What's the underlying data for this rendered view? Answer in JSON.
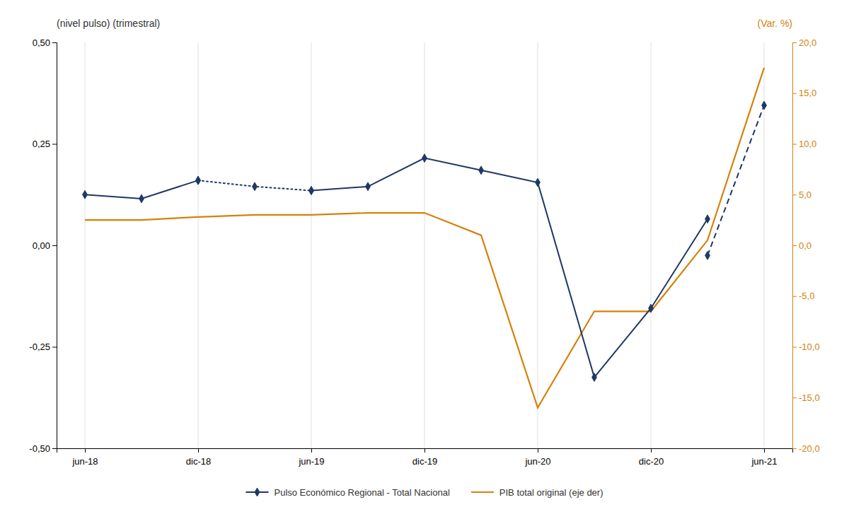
{
  "chart_data": {
    "type": "line",
    "y_label": "(nivel pulso) (trimestral)",
    "y2_label": "(Var. %)",
    "categories": [
      "jun-18",
      null,
      "dic-18",
      null,
      "jun-19",
      null,
      "dic-19",
      null,
      "jun-20",
      null,
      "dic-20",
      null,
      "jun-21"
    ],
    "series": [
      {
        "name": "Pulso Económico Regional - Total Nacional",
        "color": "#1f3864",
        "marker": "diamond",
        "line_style": "solid",
        "values": [
          0.125,
          0.115,
          0.16,
          null,
          0.135,
          0.145,
          0.215,
          0.185,
          0.155,
          -0.325,
          -0.155,
          0.065,
          null
        ]
      },
      {
        "color": "#1f3864",
        "marker": "diamond",
        "line_style": "dotted",
        "values": [
          null,
          null,
          0.16,
          0.145,
          0.135,
          null,
          null,
          null,
          null,
          null,
          null,
          null,
          null
        ]
      },
      {
        "color": "#1f3864",
        "marker": "diamond",
        "line_style": "dashed",
        "values": [
          null,
          null,
          null,
          null,
          null,
          null,
          null,
          null,
          null,
          null,
          null,
          -0.025,
          0.345
        ]
      },
      {
        "name": "PIB total original (eje der)",
        "color": "#d4820a",
        "line_style": "solid",
        "axis": "y2",
        "values": [
          2.5,
          2.5,
          2.8,
          3.0,
          3.0,
          3.2,
          3.2,
          1.0,
          -16.0,
          -6.5,
          -6.5,
          0.5,
          17.5
        ]
      }
    ],
    "ylim": [
      -0.5,
      0.5
    ],
    "yticks": [
      {
        "value": -0.5,
        "label": "-0,50"
      },
      {
        "value": -0.25,
        "label": "-0,25"
      },
      {
        "value": 0,
        "label": "0,00"
      },
      {
        "value": 0.25,
        "label": "0,25"
      },
      {
        "value": 0.5,
        "label": "0,50"
      }
    ],
    "y2lim": [
      -20,
      20
    ],
    "y2ticks": [
      {
        "value": -20,
        "label": "-20,0"
      },
      {
        "value": -15,
        "label": "-15,0"
      },
      {
        "value": -10,
        "label": "-10,0"
      },
      {
        "value": -5,
        "label": "-5,0"
      },
      {
        "value": 0,
        "label": "0,0"
      },
      {
        "value": 5,
        "label": "5,0"
      },
      {
        "value": 10,
        "label": "10,0"
      },
      {
        "value": 15,
        "label": "15,0"
      },
      {
        "value": 20,
        "label": "20,0"
      }
    ],
    "grid": "x",
    "legend": "bottom"
  }
}
